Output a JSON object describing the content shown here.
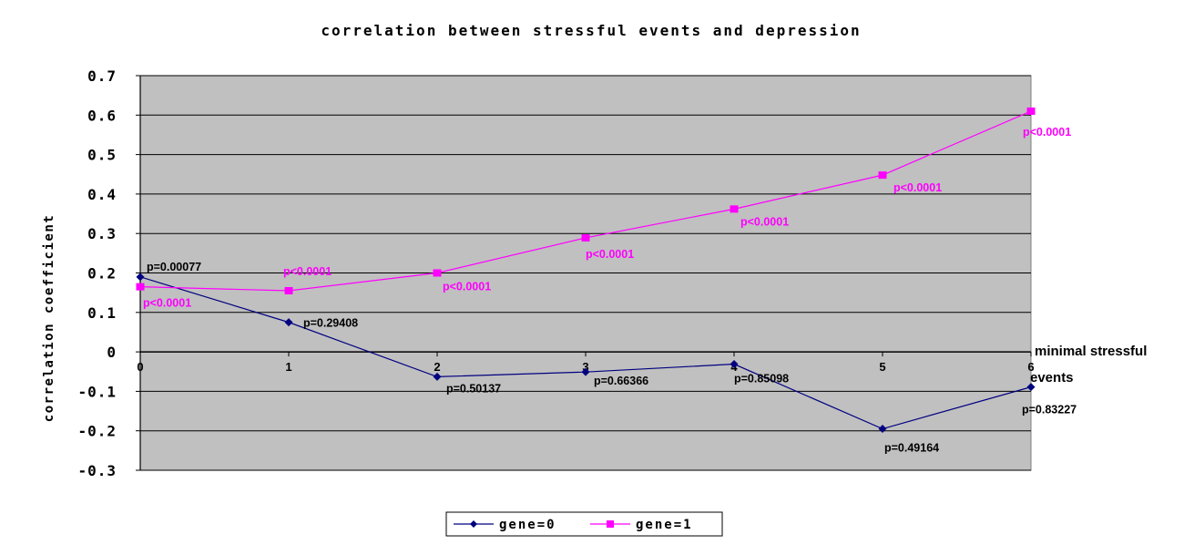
{
  "chart_data": {
    "type": "line",
    "title": "correlation between stressful events and depression",
    "xlabel_line1": "minimal stressful",
    "xlabel_line2": "events",
    "ylabel": "correlation coefficient",
    "x": [
      0,
      1,
      2,
      3,
      4,
      5,
      6
    ],
    "x_tick_labels": [
      "0",
      "1",
      "2",
      "3",
      "4",
      "5",
      "6"
    ],
    "ylim": [
      -0.3,
      0.7
    ],
    "y_ticks": [
      0.7,
      0.6,
      0.5,
      0.4,
      0.3,
      0.2,
      0.1,
      0,
      -0.1,
      -0.2,
      -0.3
    ],
    "y_tick_labels": [
      "0.7",
      "0.6",
      "0.5",
      "0.4",
      "0.3",
      "0.2",
      "0.1",
      "0",
      "-0.1",
      "-0.2",
      "-0.3"
    ],
    "grid": "horizontal",
    "legend_position": "bottom",
    "plot_background": "#c0c0c0",
    "series": [
      {
        "name": "gene=0",
        "color": "#000080",
        "marker": "diamond",
        "values": [
          0.19,
          0.075,
          -0.063,
          -0.051,
          -0.031,
          -0.195,
          -0.089
        ],
        "labels": [
          "p=0.00077",
          "p=0.29408",
          "p=0.50137",
          "p=0.66366",
          "p=0.85098",
          "p=0.49164",
          "p=0.83227"
        ]
      },
      {
        "name": "gene=1",
        "color": "#ff00ff",
        "marker": "square",
        "values": [
          0.165,
          0.155,
          0.2,
          0.289,
          0.362,
          0.448,
          0.61
        ],
        "labels": [
          "p<0.0001",
          "p<0.0001",
          "p<0.0001",
          "p<0.0001",
          "p<0.0001",
          "p<0.0001",
          "p<0.0001"
        ]
      }
    ]
  }
}
